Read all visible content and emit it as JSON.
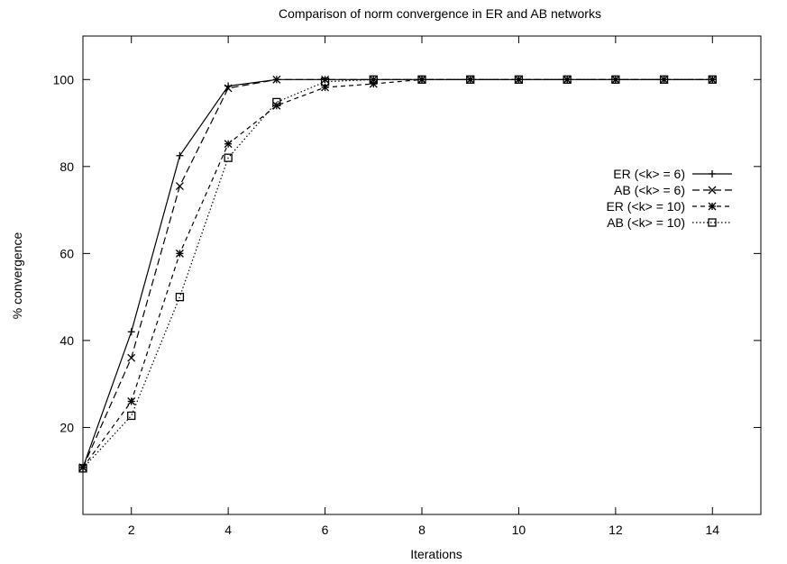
{
  "chart_data": {
    "type": "line",
    "title": "Comparison of norm convergence in ER and AB networks",
    "xlabel": "Iterations",
    "ylabel": "% convergence",
    "xlim": [
      1,
      15
    ],
    "ylim": [
      0,
      110
    ],
    "xticks": [
      2,
      4,
      6,
      8,
      10,
      12,
      14
    ],
    "yticks": [
      20,
      40,
      60,
      80,
      100
    ],
    "grid": false,
    "legend_position": "right",
    "x": [
      1,
      2,
      3,
      4,
      5,
      6,
      7,
      8,
      9,
      10,
      11,
      12,
      13,
      14
    ],
    "series": [
      {
        "name": "ER (<k> = 6)",
        "marker": "plus",
        "dash": "solid",
        "values": [
          10.8,
          42.0,
          82.5,
          98.5,
          100,
          100,
          100,
          100,
          100,
          100,
          100,
          100,
          100,
          100
        ]
      },
      {
        "name": "AB (<k> = 6)",
        "marker": "cross",
        "dash": "long-dash",
        "values": [
          10.8,
          36.0,
          75.5,
          98.0,
          100,
          100,
          100,
          100,
          100,
          100,
          100,
          100,
          100,
          100
        ]
      },
      {
        "name": "ER (<k> = 10)",
        "marker": "star",
        "dash": "short-dash",
        "values": [
          10.8,
          26.0,
          60.0,
          85.2,
          94.0,
          98.2,
          99.0,
          100,
          100,
          100,
          100,
          100,
          100,
          100
        ]
      },
      {
        "name": "AB (<k> = 10)",
        "marker": "square",
        "dash": "dotted",
        "values": [
          10.6,
          22.7,
          50.0,
          82.0,
          94.8,
          99.5,
          100,
          100,
          100,
          100,
          100,
          100,
          100,
          100
        ]
      }
    ]
  }
}
